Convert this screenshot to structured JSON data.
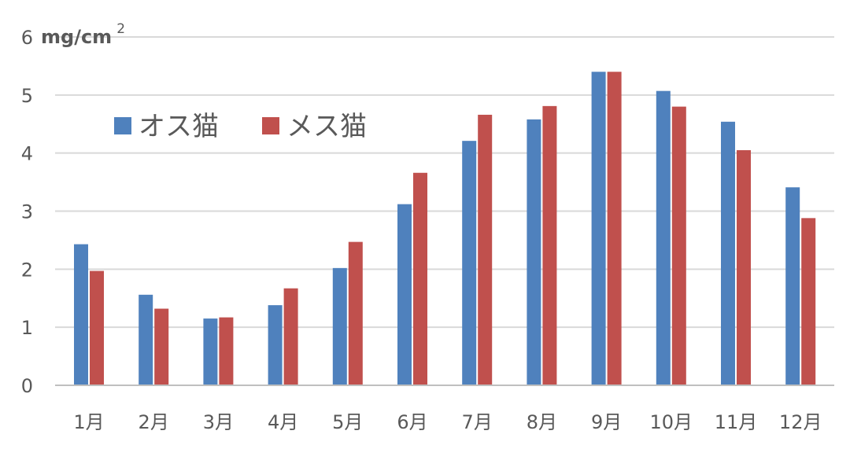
{
  "chart_data": {
    "type": "bar",
    "unit": {
      "base": "mg/cm",
      "superscript": "2"
    },
    "categories": [
      "1月",
      "2月",
      "3月",
      "4月",
      "5月",
      "6月",
      "7月",
      "8月",
      "9月",
      "10月",
      "11月",
      "12月"
    ],
    "series": [
      {
        "name": "オス猫",
        "color": "#4F81BD",
        "values": [
          2.43,
          1.56,
          1.15,
          1.38,
          2.02,
          3.12,
          4.21,
          4.58,
          5.4,
          5.07,
          4.54,
          3.41
        ]
      },
      {
        "name": "メス猫",
        "color": "#C0504D",
        "values": [
          1.97,
          1.32,
          1.17,
          1.67,
          2.47,
          3.66,
          4.66,
          4.81,
          5.4,
          4.8,
          4.05,
          2.88
        ]
      }
    ],
    "ylim": [
      0,
      6
    ],
    "yticks": [
      "0",
      "1",
      "2",
      "3",
      "4",
      "5",
      "6"
    ],
    "grid": true,
    "legend_position": "top-left",
    "gridline_color": "#D9D9D9",
    "axis_line_color": "#BFBFBF",
    "text_color": "#595959"
  }
}
